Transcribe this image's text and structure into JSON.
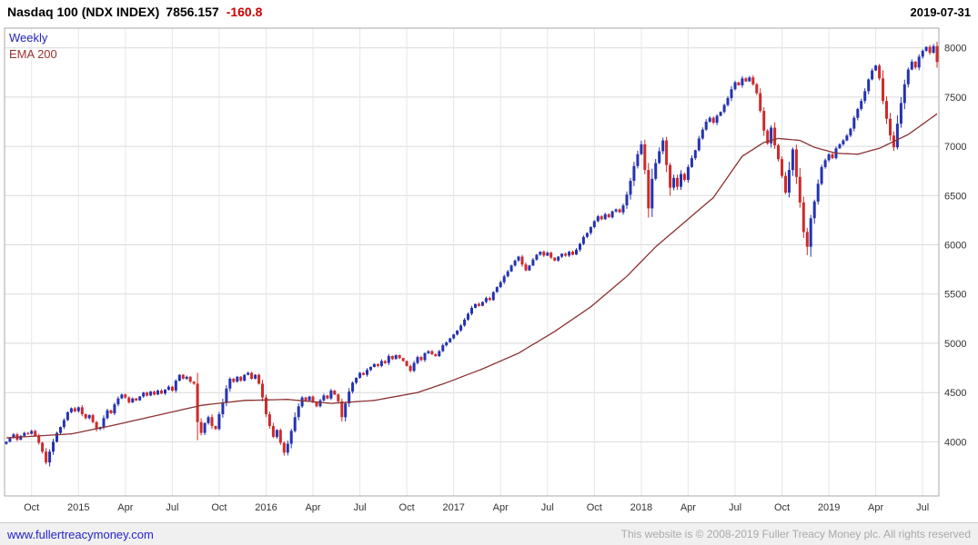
{
  "header": {
    "title": "Nasdaq 100 (NDX INDEX)",
    "price": "7856.157",
    "change": "-160.8",
    "change_color": "#cc0000",
    "date": "2019-07-31"
  },
  "legend": {
    "items": [
      {
        "label": "Weekly",
        "color": "#2222bb"
      },
      {
        "label": "EMA 200",
        "color": "#993333"
      }
    ]
  },
  "footer": {
    "link": "www.fullertreacymoney.com",
    "copyright": "This website is © 2008-2019 Fuller Treacy Money plc. All rights reserved"
  },
  "chart_data": {
    "type": "candlestick",
    "title": "Nasdaq 100 (NDX INDEX) weekly candlestick chart with EMA 200 overlay",
    "interval": "Weekly",
    "last_close": 7856.157,
    "change": -160.8,
    "legend_position": "top-left",
    "grid": true,
    "y_axis": {
      "side": "right",
      "min": 3450,
      "max": 8200,
      "ticks": [
        4000,
        4500,
        5000,
        5500,
        6000,
        6500,
        7000,
        7500,
        8000
      ]
    },
    "x_axis": {
      "labels": [
        {
          "label": "Oct",
          "week": 7
        },
        {
          "label": "2015",
          "week": 20
        },
        {
          "label": "Apr",
          "week": 33
        },
        {
          "label": "Jul",
          "week": 46
        },
        {
          "label": "Oct",
          "week": 59
        },
        {
          "label": "2016",
          "week": 72
        },
        {
          "label": "Apr",
          "week": 85
        },
        {
          "label": "Jul",
          "week": 98
        },
        {
          "label": "Oct",
          "week": 111
        },
        {
          "label": "2017",
          "week": 124
        },
        {
          "label": "Apr",
          "week": 137
        },
        {
          "label": "Jul",
          "week": 150
        },
        {
          "label": "Oct",
          "week": 163
        },
        {
          "label": "2018",
          "week": 176
        },
        {
          "label": "Apr",
          "week": 189
        },
        {
          "label": "Jul",
          "week": 202
        },
        {
          "label": "Oct",
          "week": 215
        },
        {
          "label": "2019",
          "week": 228
        },
        {
          "label": "Apr",
          "week": 241
        },
        {
          "label": "Jul",
          "week": 254
        }
      ]
    },
    "weekly_closes": [
      4000,
      4040,
      4075,
      4020,
      4060,
      4090,
      4080,
      4110,
      4060,
      3990,
      3900,
      3790,
      3900,
      4000,
      4090,
      4150,
      4220,
      4300,
      4340,
      4310,
      4350,
      4280,
      4240,
      4270,
      4200,
      4130,
      4150,
      4240,
      4320,
      4290,
      4380,
      4440,
      4480,
      4450,
      4400,
      4440,
      4420,
      4460,
      4500,
      4470,
      4510,
      4480,
      4520,
      4490,
      4530,
      4560,
      4520,
      4620,
      4680,
      4640,
      4660,
      4610,
      4590,
      4200,
      4090,
      4190,
      4250,
      4160,
      4130,
      4280,
      4400,
      4540,
      4640,
      4610,
      4660,
      4620,
      4680,
      4700,
      4640,
      4680,
      4590,
      4450,
      4280,
      4160,
      4050,
      4120,
      3990,
      3890,
      3980,
      4110,
      4250,
      4360,
      4450,
      4420,
      4460,
      4400,
      4360,
      4420,
      4470,
      4440,
      4520,
      4480,
      4410,
      4250,
      4390,
      4510,
      4600,
      4650,
      4700,
      4680,
      4730,
      4760,
      4790,
      4770,
      4820,
      4800,
      4870,
      4840,
      4880,
      4850,
      4820,
      4770,
      4720,
      4800,
      4860,
      4830,
      4900,
      4920,
      4890,
      4870,
      4920,
      4980,
      5010,
      5050,
      5090,
      5130,
      5180,
      5240,
      5300,
      5360,
      5400,
      5380,
      5420,
      5460,
      5440,
      5520,
      5570,
      5620,
      5680,
      5730,
      5790,
      5840,
      5880,
      5800,
      5740,
      5790,
      5850,
      5900,
      5930,
      5890,
      5920,
      5870,
      5840,
      5880,
      5910,
      5890,
      5930,
      5900,
      5950,
      6010,
      6080,
      6120,
      6180,
      6240,
      6290,
      6260,
      6310,
      6280,
      6340,
      6360,
      6330,
      6400,
      6510,
      6650,
      6800,
      6920,
      7020,
      6760,
      6370,
      6670,
      6830,
      6950,
      7060,
      6810,
      6580,
      6680,
      6590,
      6720,
      6660,
      6790,
      6880,
      6960,
      7080,
      7170,
      7250,
      7290,
      7240,
      7310,
      7350,
      7420,
      7490,
      7580,
      7650,
      7620,
      7690,
      7660,
      7700,
      7630,
      7540,
      7360,
      7160,
      7030,
      7190,
      7010,
      6870,
      6700,
      6530,
      6760,
      6970,
      6690,
      6430,
      6130,
      5980,
      6270,
      6440,
      6620,
      6790,
      6860,
      6920,
      6880,
      6980,
      7020,
      7060,
      7110,
      7180,
      7290,
      7380,
      7460,
      7560,
      7680,
      7770,
      7820,
      7690,
      7460,
      7280,
      7110,
      6990,
      7230,
      7440,
      7630,
      7780,
      7860,
      7800,
      7910,
      7970,
      8010,
      7950,
      8017,
      7856.157
    ],
    "ema_anchors": [
      [
        0,
        4040
      ],
      [
        18,
        4080
      ],
      [
        30,
        4170
      ],
      [
        42,
        4270
      ],
      [
        54,
        4370
      ],
      [
        66,
        4420
      ],
      [
        78,
        4430
      ],
      [
        90,
        4390
      ],
      [
        102,
        4420
      ],
      [
        114,
        4500
      ],
      [
        122,
        4600
      ],
      [
        132,
        4740
      ],
      [
        142,
        4900
      ],
      [
        152,
        5120
      ],
      [
        162,
        5370
      ],
      [
        172,
        5680
      ],
      [
        180,
        5980
      ],
      [
        188,
        6230
      ],
      [
        196,
        6480
      ],
      [
        204,
        6900
      ],
      [
        210,
        7040
      ],
      [
        214,
        7080
      ],
      [
        220,
        7060
      ],
      [
        224,
        6990
      ],
      [
        230,
        6930
      ],
      [
        236,
        6920
      ],
      [
        242,
        6980
      ],
      [
        250,
        7120
      ],
      [
        258,
        7330
      ]
    ],
    "low_overrides": {
      "53": 4016,
      "222": 5895
    },
    "colors": {
      "up": "#2433b2",
      "down": "#cf2a2a",
      "ema": "#8c3030",
      "grid": "#d9d9d9",
      "vgrid": "#e7e7e7",
      "border": "#a8a8a8",
      "axis_text": "#333333"
    }
  }
}
